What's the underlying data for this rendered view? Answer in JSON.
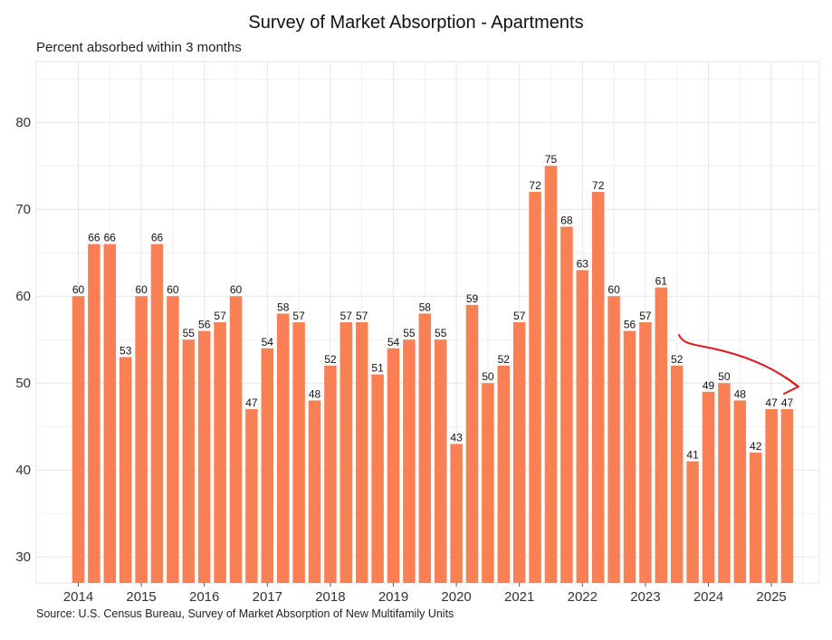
{
  "chart_data": {
    "type": "bar",
    "title": "Survey of Market Absorption - Apartments",
    "subtitle": "Percent absorbed within 3 months",
    "caption": "Source: U.S. Census Bureau, Survey of Market Absorption of New Multifamily Units",
    "xlabel": "",
    "ylabel": "",
    "ylim": [
      27,
      87
    ],
    "yticks": [
      30,
      40,
      50,
      60,
      70,
      80
    ],
    "year_labels": [
      "2014",
      "2015",
      "2016",
      "2017",
      "2018",
      "2019",
      "2020",
      "2021",
      "2022",
      "2023",
      "2024",
      "2025"
    ],
    "year_starts": [
      0,
      4,
      8,
      12,
      16,
      20,
      24,
      28,
      32,
      36,
      40,
      44
    ],
    "values": [
      60,
      66,
      66,
      53,
      60,
      66,
      60,
      55,
      56,
      57,
      60,
      47,
      54,
      58,
      57,
      48,
      52,
      57,
      57,
      51,
      54,
      55,
      58,
      55,
      43,
      59,
      50,
      52,
      57,
      72,
      75,
      68,
      63,
      72,
      60,
      56,
      57,
      61,
      52,
      41,
      49,
      50,
      48,
      42,
      47,
      47
    ],
    "grid": true,
    "annotation": "red hand-drawn arrow pointing downward-right toward the latest bars"
  },
  "colors": {
    "bar": "#f97f55",
    "grid": "#e6e6e6",
    "arrow": "#e0191c"
  }
}
